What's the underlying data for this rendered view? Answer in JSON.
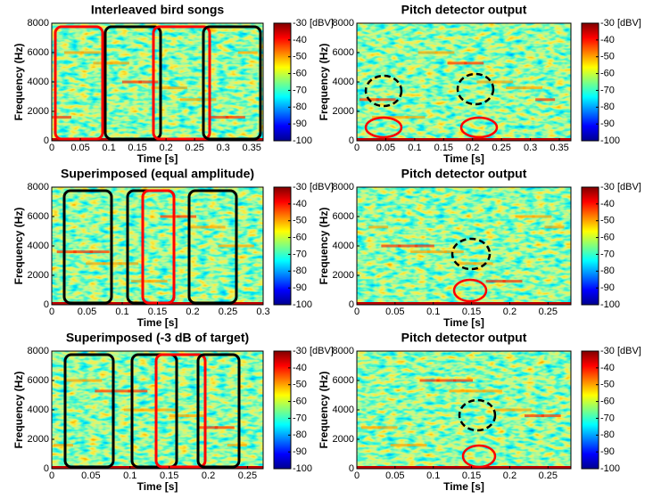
{
  "chart_data": [
    {
      "type": "spectrogram",
      "title": "Interleaved bird songs",
      "xlabel": "Time [s]",
      "ylabel": "Frequency (Hz)",
      "xlim": [
        0,
        0.37
      ],
      "xticks": [
        0,
        0.05,
        0.1,
        0.15,
        0.2,
        0.25,
        0.3,
        0.35
      ],
      "ylim": [
        0,
        8000
      ],
      "yticks": [
        0,
        2000,
        4000,
        6000,
        8000
      ],
      "clim": [
        -100,
        -30
      ],
      "cticks": [
        {
          "value": -30,
          "label": "-30 [dBV]"
        },
        -40,
        -50,
        -60,
        -70,
        -80,
        -90,
        -100
      ]
    },
    {
      "type": "spectrogram",
      "title": "Pitch detector output",
      "xlabel": "Time [s]",
      "ylabel": "Frequency (Hz)",
      "xlim": [
        0,
        0.37
      ],
      "xticks": [
        0,
        0.05,
        0.1,
        0.15,
        0.2,
        0.25,
        0.3,
        0.35
      ],
      "ylim": [
        0,
        8000
      ],
      "yticks": [
        0,
        2000,
        4000,
        6000,
        8000
      ],
      "clim": [
        -100,
        -30
      ],
      "cticks": [
        {
          "value": -30,
          "label": "-30 [dBV]"
        },
        -40,
        -50,
        -60,
        -70,
        -80,
        -90,
        -100
      ]
    },
    {
      "type": "spectrogram",
      "title": "Superimposed (equal amplitude)",
      "xlabel": "Time [s]",
      "ylabel": "Frequency (Hz)",
      "xlim": [
        0,
        0.3
      ],
      "xticks": [
        0,
        0.05,
        0.1,
        0.15,
        0.2,
        0.25,
        0.3
      ],
      "ylim": [
        0,
        8000
      ],
      "yticks": [
        0,
        2000,
        4000,
        6000,
        8000
      ],
      "clim": [
        -100,
        -30
      ],
      "cticks": [
        {
          "value": -30,
          "label": "-30 [dBV]"
        },
        -40,
        -50,
        -60,
        -70,
        -80,
        -90,
        -100
      ]
    },
    {
      "type": "spectrogram",
      "title": "Pitch detector output",
      "xlabel": "Time [s]",
      "ylabel": "Frequency (Hz)",
      "xlim": [
        0,
        0.28
      ],
      "xticks": [
        0,
        0.05,
        0.1,
        0.15,
        0.2,
        0.25
      ],
      "ylim": [
        0,
        8000
      ],
      "yticks": [
        0,
        2000,
        4000,
        6000,
        8000
      ],
      "clim": [
        -100,
        -30
      ],
      "cticks": [
        {
          "value": -30,
          "label": "-30 [dBV]"
        },
        -40,
        -50,
        -60,
        -70,
        -80,
        -90,
        -100
      ]
    },
    {
      "type": "spectrogram",
      "title": "Superimposed (-3 dB of target)",
      "xlabel": "Time [s]",
      "ylabel": "Frequency (Hz)",
      "xlim": [
        0,
        0.27
      ],
      "xticks": [
        0,
        0.05,
        0.1,
        0.15,
        0.2,
        0.25
      ],
      "ylim": [
        0,
        8000
      ],
      "yticks": [
        0,
        2000,
        4000,
        6000,
        8000
      ],
      "clim": [
        -100,
        -30
      ],
      "cticks": [
        {
          "value": -30,
          "label": "-30 [dBV]"
        },
        -40,
        -50,
        -60,
        -70,
        -80,
        -90,
        -100
      ]
    },
    {
      "type": "spectrogram",
      "title": "Pitch detector output",
      "xlabel": "Time [s]",
      "ylabel": "Frequency (Hz)",
      "xlim": [
        0,
        0.28
      ],
      "xticks": [
        0,
        0.05,
        0.1,
        0.15,
        0.2,
        0.25
      ],
      "ylim": [
        0,
        8000
      ],
      "yticks": [
        0,
        2000,
        4000,
        6000,
        8000
      ],
      "clim": [
        -100,
        -30
      ],
      "cticks": [
        {
          "value": -30,
          "label": "-30 [dBV]"
        },
        -40,
        -50,
        -60,
        -70,
        -80,
        -90,
        -100
      ]
    }
  ]
}
